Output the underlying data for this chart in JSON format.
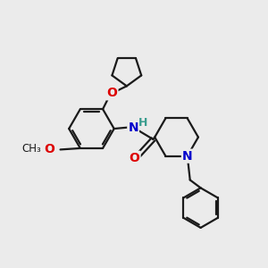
{
  "bg_color": "#ebebeb",
  "bond_color": "#1a1a1a",
  "bond_width": 1.6,
  "atom_colors": {
    "O": "#dd0000",
    "N": "#0000cc",
    "H_color": "#3a9d8f",
    "C": "#1a1a1a"
  },
  "layout": {
    "xlim": [
      0,
      10
    ],
    "ylim": [
      0,
      10
    ]
  }
}
